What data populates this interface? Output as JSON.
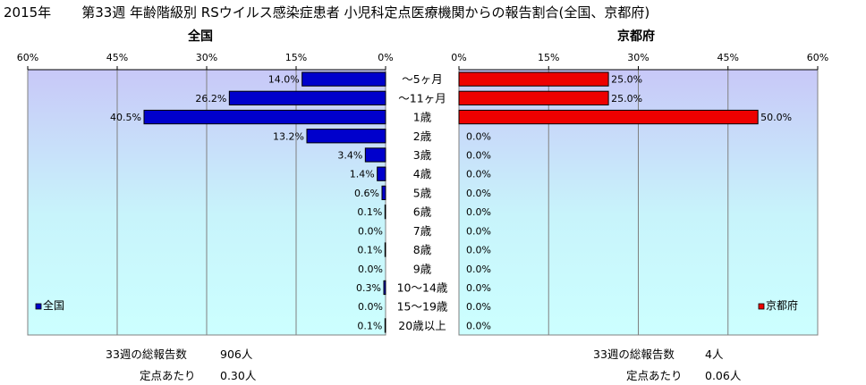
{
  "header": {
    "year": "2015年",
    "title": "第33週 年齢階級別 RSウイルス感染症患者 小児科定点医療機関からの報告割合(全国、京都府)"
  },
  "chart_data": {
    "type": "bar",
    "orientation": "horizontal",
    "categories": [
      "～5ヶ月",
      "～11ヶ月",
      "1歳",
      "2歳",
      "3歳",
      "4歳",
      "5歳",
      "6歳",
      "7歳",
      "8歳",
      "9歳",
      "10～14歳",
      "15～19歳",
      "20歳以上"
    ],
    "axis_ticks": [
      "60%",
      "45%",
      "30%",
      "15%",
      "0%"
    ],
    "axis_ticks_right": [
      "0%",
      "15%",
      "30%",
      "45%",
      "60%"
    ],
    "xlim": [
      0,
      60
    ],
    "grid": true,
    "series": [
      {
        "name": "全国",
        "panel_title": "全国",
        "color": "#0000cc",
        "direction": "left",
        "values": [
          14.0,
          26.2,
          40.5,
          13.2,
          3.4,
          1.4,
          0.6,
          0.1,
          0.0,
          0.1,
          0.0,
          0.3,
          0.0,
          0.1
        ],
        "labels": [
          "14.0%",
          "26.2%",
          "40.5%",
          "13.2%",
          "3.4%",
          "1.4%",
          "0.6%",
          "0.1%",
          "0.0%",
          "0.1%",
          "0.0%",
          "0.3%",
          "0.0%",
          "0.1%"
        ],
        "legend_placement": "bottom-left"
      },
      {
        "name": "京都府",
        "panel_title": "京都府",
        "color": "#ee0000",
        "direction": "right",
        "values": [
          25.0,
          25.0,
          50.0,
          0.0,
          0.0,
          0.0,
          0.0,
          0.0,
          0.0,
          0.0,
          0.0,
          0.0,
          0.0,
          0.0
        ],
        "labels": [
          "25.0%",
          "25.0%",
          "50.0%",
          "0.0%",
          "0.0%",
          "0.0%",
          "0.0%",
          "0.0%",
          "0.0%",
          "0.0%",
          "0.0%",
          "0.0%",
          "0.0%",
          "0.0%"
        ],
        "legend_placement": "bottom-right"
      }
    ]
  },
  "footer": {
    "national_total_label": "33週の総報告数",
    "national_total_value": "906人",
    "national_per_label": "定点あたり",
    "national_per_value": "0.30人",
    "kyoto_total_label": "33週の総報告数",
    "kyoto_total_value": "4人",
    "kyoto_per_label": "定点あたり",
    "kyoto_per_value": "0.06人"
  }
}
